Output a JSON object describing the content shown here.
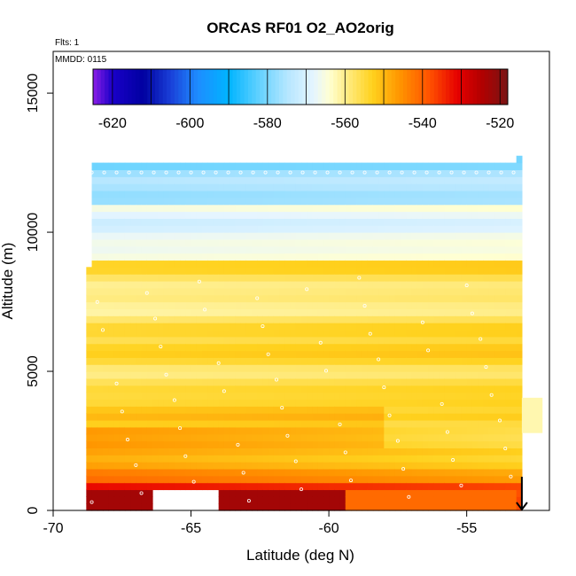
{
  "chart_data": {
    "type": "heatmap",
    "title": "ORCAS RF01 O2_AO2orig",
    "xlabel": "Latitude (deg N)",
    "ylabel": "Altitude (m)",
    "xlim": [
      -70,
      -52
    ],
    "ylim": [
      0,
      16500
    ],
    "x_ticks": [
      -70,
      -65,
      -60,
      -55
    ],
    "y_ticks": [
      0,
      5000,
      10000,
      15000
    ],
    "notes": {
      "flights": "Flts: 1",
      "date": "MMDD: 0115"
    },
    "colorbar": {
      "range": [
        -625,
        -518
      ],
      "ticks": [
        -620,
        -600,
        -580,
        -560,
        -540,
        -520
      ],
      "stops": [
        {
          "value": -625,
          "color": "#8b1ee6"
        },
        {
          "value": -620,
          "color": "#1a00c8"
        },
        {
          "value": -612,
          "color": "#0000a0"
        },
        {
          "value": -605,
          "color": "#1a40d8"
        },
        {
          "value": -598,
          "color": "#1e8cff"
        },
        {
          "value": -590,
          "color": "#00b4ff"
        },
        {
          "value": -582,
          "color": "#64d2ff"
        },
        {
          "value": -575,
          "color": "#b4e6ff"
        },
        {
          "value": -568,
          "color": "#e6f5ff"
        },
        {
          "value": -564,
          "color": "#ffffd2"
        },
        {
          "value": -560,
          "color": "#ffee8c"
        },
        {
          "value": -553,
          "color": "#ffd21e"
        },
        {
          "value": -546,
          "color": "#ff9600"
        },
        {
          "value": -538,
          "color": "#ff5000"
        },
        {
          "value": -531,
          "color": "#e60000"
        },
        {
          "value": -525,
          "color": "#b40000"
        },
        {
          "value": -518,
          "color": "#781414"
        }
      ]
    },
    "field": {
      "description_levels": [
        {
          "alt_min": 0,
          "alt_max": 1000,
          "value": -537
        },
        {
          "alt_min": 1000,
          "alt_max": 3000,
          "value": -548
        },
        {
          "alt_min": 3000,
          "alt_max": 6000,
          "value": -554
        },
        {
          "alt_min": 6000,
          "alt_max": 9000,
          "value": -557
        },
        {
          "alt_min": 9000,
          "alt_max": 11000,
          "value": -566
        },
        {
          "alt_min": 11000,
          "alt_max": 12500,
          "value": -578
        }
      ]
    },
    "marker": {
      "x": -53,
      "y": 700,
      "symbol": "down-arrow"
    }
  }
}
